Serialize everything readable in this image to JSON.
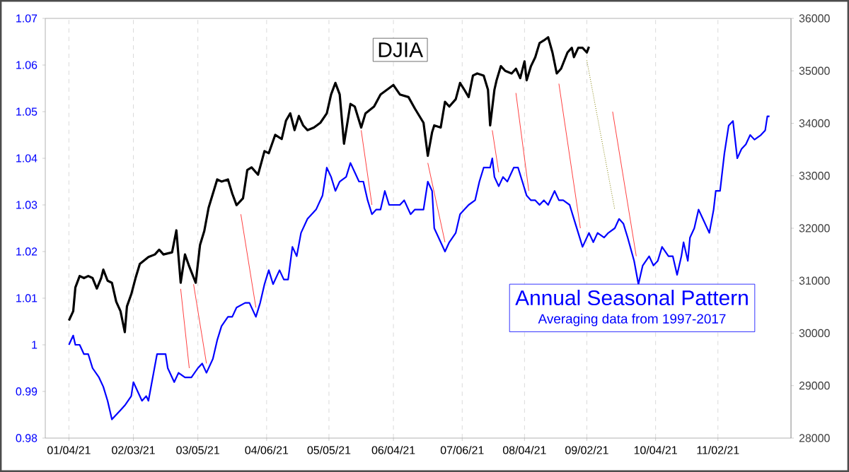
{
  "chart_data": {
    "type": "line",
    "xlim": [
      "2020-12-24",
      "2021-12-06"
    ],
    "xticks": [
      {
        "value": "2021-01-04",
        "label": "01/04/21"
      },
      {
        "value": "2021-02-03",
        "label": "02/03/21"
      },
      {
        "value": "2021-03-05",
        "label": "03/05/21"
      },
      {
        "value": "2021-04-06",
        "label": "04/06/21"
      },
      {
        "value": "2021-05-05",
        "label": "05/05/21"
      },
      {
        "value": "2021-06-04",
        "label": "06/04/21"
      },
      {
        "value": "2021-07-06",
        "label": "07/06/21"
      },
      {
        "value": "2021-08-04",
        "label": "08/04/21"
      },
      {
        "value": "2021-09-02",
        "label": "09/02/21"
      },
      {
        "value": "2021-10-04",
        "label": "10/04/21"
      },
      {
        "value": "2021-11-02",
        "label": "11/02/21"
      }
    ],
    "ylim": [
      0.98,
      1.07
    ],
    "yticks": [
      0.98,
      0.99,
      1,
      1.01,
      1.02,
      1.03,
      1.04,
      1.05,
      1.06,
      1.07
    ],
    "y2lim": [
      28000,
      36000
    ],
    "y2ticks": [
      28000,
      29000,
      30000,
      31000,
      32000,
      33000,
      34000,
      35000,
      36000
    ],
    "grid": "x",
    "marker": "none",
    "annotations": [
      "Averaging data from 1997-2017"
    ],
    "series": [
      {
        "name": "DJIA",
        "color": "#000000",
        "axis": "y2",
        "x": [
          "2021-01-04",
          "2021-01-06",
          "2021-01-07",
          "2021-01-09",
          "2021-01-11",
          "2021-01-13",
          "2021-01-15",
          "2021-01-17",
          "2021-01-19",
          "2021-01-20",
          "2021-01-22",
          "2021-01-24",
          "2021-01-26",
          "2021-01-28",
          "2021-01-30",
          "2021-01-31",
          "2021-02-02",
          "2021-02-04",
          "2021-02-06",
          "2021-02-10",
          "2021-02-13",
          "2021-02-15",
          "2021-02-17",
          "2021-02-21",
          "2021-02-23",
          "2021-02-25",
          "2021-02-27",
          "2021-03-01",
          "2021-03-04",
          "2021-03-06",
          "2021-03-08",
          "2021-03-10",
          "2021-03-14",
          "2021-03-16",
          "2021-03-19",
          "2021-03-21",
          "2021-03-23",
          "2021-03-26",
          "2021-03-28",
          "2021-03-30",
          "2021-04-02",
          "2021-04-05",
          "2021-04-07",
          "2021-04-10",
          "2021-04-13",
          "2021-04-15",
          "2021-04-17",
          "2021-04-19",
          "2021-04-21",
          "2021-04-23",
          "2021-04-25",
          "2021-04-28",
          "2021-05-01",
          "2021-05-04",
          "2021-05-06",
          "2021-05-08",
          "2021-05-10",
          "2021-05-12",
          "2021-05-15",
          "2021-05-17",
          "2021-05-20",
          "2021-05-22",
          "2021-05-26",
          "2021-05-29",
          "2021-06-01",
          "2021-06-04",
          "2021-06-07",
          "2021-06-11",
          "2021-06-14",
          "2021-06-18",
          "2021-06-20",
          "2021-06-22",
          "2021-06-23",
          "2021-06-26",
          "2021-06-28",
          "2021-06-30",
          "2021-07-03",
          "2021-07-05",
          "2021-07-07",
          "2021-07-09",
          "2021-07-11",
          "2021-07-13",
          "2021-07-16",
          "2021-07-18",
          "2021-07-19",
          "2021-07-21",
          "2021-07-22",
          "2021-07-24",
          "2021-07-26",
          "2021-07-29",
          "2021-07-31",
          "2021-08-02",
          "2021-08-04",
          "2021-08-05",
          "2021-08-07",
          "2021-08-09",
          "2021-08-11",
          "2021-08-13",
          "2021-08-15",
          "2021-08-17",
          "2021-08-19",
          "2021-08-21",
          "2021-08-24",
          "2021-08-26",
          "2021-08-27",
          "2021-08-29",
          "2021-08-31",
          "2021-09-02",
          "2021-09-03"
        ],
        "values": [
          30240,
          30420,
          30870,
          31090,
          31050,
          31090,
          31050,
          30850,
          31050,
          31210,
          31000,
          30960,
          30600,
          30420,
          30020,
          30510,
          30740,
          31050,
          31320,
          31450,
          31500,
          31590,
          31500,
          31540,
          31960,
          30960,
          31500,
          31270,
          30960,
          31680,
          31950,
          32390,
          32930,
          32890,
          32930,
          32660,
          32440,
          32570,
          33110,
          33160,
          33020,
          33470,
          33430,
          33780,
          33700,
          34050,
          34190,
          33870,
          34140,
          33960,
          33870,
          33920,
          34010,
          34190,
          34550,
          34770,
          34550,
          33610,
          34370,
          34320,
          33920,
          34190,
          34320,
          34550,
          34640,
          34730,
          34550,
          34500,
          34280,
          34010,
          33380,
          33830,
          33960,
          33920,
          34410,
          34320,
          34460,
          34770,
          34640,
          34500,
          34910,
          34950,
          34910,
          34640,
          33960,
          34640,
          34820,
          35090,
          35000,
          34950,
          35040,
          34860,
          35180,
          34820,
          35090,
          35260,
          35530,
          35580,
          35640,
          35350,
          34950,
          35040,
          35350,
          35440,
          35260,
          35440,
          35440,
          35350,
          35460
        ]
      },
      {
        "name": "Annual Seasonal Pattern",
        "color": "#0000ff",
        "axis": "y",
        "x": [
          "2021-01-04",
          "2021-01-06",
          "2021-01-07",
          "2021-01-09",
          "2021-01-11",
          "2021-01-13",
          "2021-01-15",
          "2021-01-18",
          "2021-01-20",
          "2021-01-22",
          "2021-01-24",
          "2021-01-26",
          "2021-01-28",
          "2021-01-30",
          "2021-02-02",
          "2021-02-03",
          "2021-02-05",
          "2021-02-07",
          "2021-02-09",
          "2021-02-10",
          "2021-02-12",
          "2021-02-14",
          "2021-02-16",
          "2021-02-18",
          "2021-02-19",
          "2021-02-22",
          "2021-02-24",
          "2021-02-27",
          "2021-03-02",
          "2021-03-05",
          "2021-03-07",
          "2021-03-09",
          "2021-03-12",
          "2021-03-14",
          "2021-03-16",
          "2021-03-19",
          "2021-03-21",
          "2021-03-23",
          "2021-03-27",
          "2021-03-29",
          "2021-04-01",
          "2021-04-03",
          "2021-04-05",
          "2021-04-07",
          "2021-04-09",
          "2021-04-12",
          "2021-04-14",
          "2021-04-16",
          "2021-04-18",
          "2021-04-20",
          "2021-04-22",
          "2021-04-25",
          "2021-04-29",
          "2021-05-02",
          "2021-05-04",
          "2021-05-06",
          "2021-05-08",
          "2021-05-10",
          "2021-05-13",
          "2021-05-15",
          "2021-05-17",
          "2021-05-19",
          "2021-05-21",
          "2021-05-23",
          "2021-05-25",
          "2021-05-27",
          "2021-05-29",
          "2021-05-31",
          "2021-06-02",
          "2021-06-05",
          "2021-06-07",
          "2021-06-09",
          "2021-06-12",
          "2021-06-14",
          "2021-06-18",
          "2021-06-20",
          "2021-06-22",
          "2021-06-23",
          "2021-06-26",
          "2021-06-28",
          "2021-06-30",
          "2021-07-03",
          "2021-07-05",
          "2021-07-07",
          "2021-07-09",
          "2021-07-12",
          "2021-07-14",
          "2021-07-16",
          "2021-07-19",
          "2021-07-20",
          "2021-07-21",
          "2021-07-23",
          "2021-07-25",
          "2021-07-27",
          "2021-07-30",
          "2021-08-01",
          "2021-08-03",
          "2021-08-05",
          "2021-08-07",
          "2021-08-09",
          "2021-08-11",
          "2021-08-13",
          "2021-08-15",
          "2021-08-18",
          "2021-08-20",
          "2021-08-22",
          "2021-08-25",
          "2021-08-27",
          "2021-08-29",
          "2021-08-31",
          "2021-09-03",
          "2021-09-05",
          "2021-09-07",
          "2021-09-10",
          "2021-09-12",
          "2021-09-15",
          "2021-09-17",
          "2021-09-19",
          "2021-09-21",
          "2021-09-24",
          "2021-09-26",
          "2021-09-28",
          "2021-10-01",
          "2021-10-03",
          "2021-10-05",
          "2021-10-07",
          "2021-10-10",
          "2021-10-12",
          "2021-10-14",
          "2021-10-16",
          "2021-10-17",
          "2021-10-19",
          "2021-10-20",
          "2021-10-22",
          "2021-10-24",
          "2021-10-26",
          "2021-10-29",
          "2021-10-31",
          "2021-11-01",
          "2021-11-03",
          "2021-11-05",
          "2021-11-07",
          "2021-11-09",
          "2021-11-11",
          "2021-11-13",
          "2021-11-15",
          "2021-11-17",
          "2021-11-19",
          "2021-11-22",
          "2021-11-24",
          "2021-11-25",
          "2021-11-26"
        ],
        "values": [
          1.0,
          1.002,
          1.0,
          1.0,
          0.998,
          0.998,
          0.995,
          0.993,
          0.991,
          0.988,
          0.984,
          0.985,
          0.986,
          0.987,
          0.989,
          0.992,
          0.99,
          0.988,
          0.989,
          0.988,
          0.993,
          0.998,
          0.998,
          0.998,
          0.995,
          0.992,
          0.994,
          0.993,
          0.993,
          0.995,
          0.996,
          0.994,
          0.997,
          1.001,
          1.004,
          1.006,
          1.006,
          1.008,
          1.009,
          1.009,
          1.006,
          1.009,
          1.013,
          1.016,
          1.013,
          1.016,
          1.014,
          1.014,
          1.021,
          1.019,
          1.024,
          1.027,
          1.029,
          1.032,
          1.038,
          1.036,
          1.033,
          1.035,
          1.036,
          1.039,
          1.037,
          1.035,
          1.035,
          1.031,
          1.028,
          1.029,
          1.029,
          1.033,
          1.03,
          1.03,
          1.03,
          1.031,
          1.028,
          1.029,
          1.029,
          1.035,
          1.033,
          1.025,
          1.022,
          1.02,
          1.022,
          1.024,
          1.028,
          1.029,
          1.03,
          1.031,
          1.035,
          1.038,
          1.038,
          1.04,
          1.036,
          1.034,
          1.036,
          1.035,
          1.038,
          1.038,
          1.035,
          1.032,
          1.031,
          1.031,
          1.03,
          1.031,
          1.03,
          1.033,
          1.031,
          1.031,
          1.03,
          1.027,
          1.024,
          1.021,
          1.024,
          1.022,
          1.024,
          1.023,
          1.024,
          1.025,
          1.027,
          1.026,
          1.023,
          1.018,
          1.013,
          1.017,
          1.019,
          1.017,
          1.018,
          1.021,
          1.019,
          1.019,
          1.015,
          1.019,
          1.022,
          1.018,
          1.023,
          1.025,
          1.029,
          1.027,
          1.024,
          1.029,
          1.033,
          1.033,
          1.041,
          1.047,
          1.048,
          1.04,
          1.042,
          1.043,
          1.045,
          1.044,
          1.045,
          1.046,
          1.049,
          1.049
        ]
      },
      {
        "color": "#ff4040",
        "axis": "y",
        "x": [
          "2021-02-25",
          "2021-03-01"
        ],
        "values": [
          1.012,
          0.995
        ]
      },
      {
        "color": "#ff4040",
        "axis": "y",
        "x": [
          "2021-03-03",
          "2021-03-09"
        ],
        "values": [
          1.013,
          0.996
        ]
      },
      {
        "color": "#ff4040",
        "axis": "y",
        "x": [
          "2021-03-25",
          "2021-04-01"
        ],
        "values": [
          1.028,
          1.008
        ]
      },
      {
        "color": "#ff4040",
        "axis": "y",
        "x": [
          "2021-05-20",
          "2021-05-25"
        ],
        "values": [
          1.046,
          1.03
        ]
      },
      {
        "color": "#ff4040",
        "axis": "y",
        "x": [
          "2021-06-20",
          "2021-06-28"
        ],
        "values": [
          1.039,
          1.022
        ]
      },
      {
        "color": "#ff4040",
        "axis": "y",
        "x": [
          "2021-07-20",
          "2021-07-23"
        ],
        "values": [
          1.046,
          1.037
        ]
      },
      {
        "color": "#ff4040",
        "axis": "y",
        "x": [
          "2021-07-31",
          "2021-08-06"
        ],
        "values": [
          1.054,
          1.033
        ]
      },
      {
        "color": "#ff4040",
        "axis": "y",
        "x": [
          "2021-08-20",
          "2021-08-30"
        ],
        "values": [
          1.056,
          1.025
        ]
      },
      {
        "color": "#ff4040",
        "axis": "y",
        "x": [
          "2021-09-14",
          "2021-09-25"
        ],
        "values": [
          1.05,
          1.019
        ]
      },
      {
        "color": "#808000",
        "axis": "y",
        "line_style": "dotted",
        "x": [
          "2021-09-02",
          "2021-09-15"
        ],
        "values": [
          1.061,
          1.029
        ]
      }
    ]
  }
}
